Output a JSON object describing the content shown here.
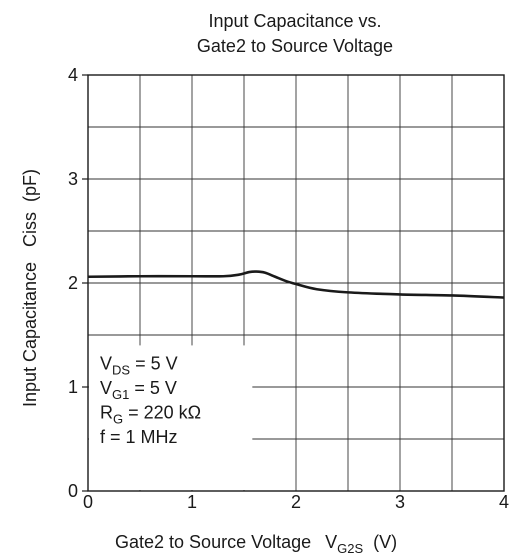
{
  "chart_data": {
    "type": "line",
    "title_lines": [
      "Input Capacitance vs.",
      "Gate2 to Source Voltage"
    ],
    "xlabel": {
      "text": "Gate2 to Source Voltage",
      "symbol": "V",
      "symbol_sub": "G2S",
      "unit": "(V)"
    },
    "ylabel": "Input Capacitance   Ciss  (pF)",
    "xlim": [
      0,
      4
    ],
    "ylim": [
      0,
      4
    ],
    "x_ticks": [
      "0",
      "1",
      "2",
      "3",
      "4"
    ],
    "y_ticks": [
      "0",
      "1",
      "2",
      "3",
      "4"
    ],
    "grid": true,
    "series": [
      {
        "x": [
          0,
          0.5,
          1.0,
          1.3,
          1.45,
          1.55,
          1.62,
          1.7,
          1.8,
          1.9,
          2.0,
          2.2,
          2.5,
          3.0,
          3.5,
          4.0
        ],
        "y": [
          2.06,
          2.065,
          2.065,
          2.065,
          2.08,
          2.105,
          2.11,
          2.1,
          2.06,
          2.02,
          1.99,
          1.94,
          1.91,
          1.89,
          1.88,
          1.86
        ]
      }
    ],
    "annotation_lines": [
      {
        "main": "V",
        "sub": "DS",
        "rest": " = 5 V"
      },
      {
        "main": "V",
        "sub": "G1",
        "rest": " = 5 V"
      },
      {
        "main": "R",
        "sub": "G",
        "rest": " = 220 kΩ"
      },
      {
        "main": "f = 1 MHz",
        "sub": "",
        "rest": ""
      }
    ]
  }
}
